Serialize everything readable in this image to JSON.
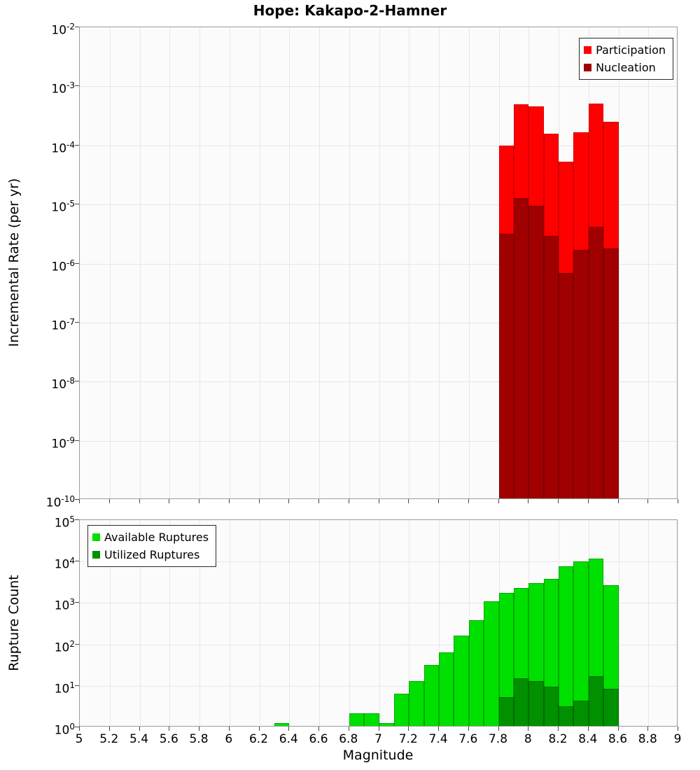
{
  "title": "Hope: Kakapo-2-Hamner",
  "xlabel": "Magnitude",
  "x_ticks": [
    "5",
    "5.2",
    "5.4",
    "5.6",
    "5.8",
    "6",
    "6.2",
    "6.4",
    "6.6",
    "6.8",
    "7",
    "7.2",
    "7.4",
    "7.6",
    "7.8",
    "8",
    "8.2",
    "8.4",
    "8.6",
    "8.8",
    "9"
  ],
  "top_plot": {
    "ylabel": "Incremental Rate (per yr)",
    "y_ticks_exp": [
      -2,
      -3,
      -4,
      -5,
      -6,
      -7,
      -8,
      -9,
      -10
    ]
  },
  "bottom_plot": {
    "ylabel": "Rupture Count",
    "y_ticks_exp": [
      5,
      4,
      3,
      2,
      1,
      0
    ]
  },
  "colors": {
    "participation": "#ff0000",
    "nucleation": "#a00000",
    "available_ruptures": "#00e000",
    "utilized_ruptures": "#009000",
    "gridline": "#e7e7e7",
    "plot_border": "#9b9b9b"
  },
  "chart_data": [
    {
      "type": "bar",
      "title": "Hope: Kakapo-2-Hamner",
      "xlabel": "Magnitude",
      "ylabel": "Incremental Rate (per yr)",
      "yscale": "log",
      "xlim": [
        5,
        9
      ],
      "ylim": [
        1e-10,
        0.01
      ],
      "bin_width": 0.1,
      "grid": true,
      "legend_position": "top-right",
      "series": [
        {
          "name": "Participation",
          "color": "#ff0000",
          "edge": "#d40000",
          "x": [
            7.85,
            7.95,
            8.05,
            8.15,
            8.25,
            8.35,
            8.45,
            8.55
          ],
          "values": [
            9.5e-05,
            0.00047,
            0.00043,
            0.00015,
            5e-05,
            0.00016,
            0.00048,
            0.00024
          ]
        },
        {
          "name": "Nucleation",
          "color": "#a00000",
          "edge": "#7f0000",
          "x": [
            7.85,
            7.95,
            8.05,
            8.15,
            8.25,
            8.35,
            8.45,
            8.55
          ],
          "values": [
            3e-06,
            1.2e-05,
            9e-06,
            2.8e-06,
            6.5e-07,
            1.6e-06,
            4e-06,
            1.7e-06
          ]
        }
      ]
    },
    {
      "type": "bar",
      "title": "",
      "xlabel": "Magnitude",
      "ylabel": "Rupture Count",
      "yscale": "log",
      "xlim": [
        5,
        9
      ],
      "ylim": [
        1,
        100000.0
      ],
      "bin_width": 0.1,
      "grid": true,
      "legend_position": "top-left",
      "series": [
        {
          "name": "Available Ruptures",
          "color": "#00e000",
          "edge": "#00a800",
          "x": [
            6.35,
            6.85,
            6.95,
            7.05,
            7.15,
            7.25,
            7.35,
            7.45,
            7.55,
            7.65,
            7.75,
            7.85,
            7.95,
            8.05,
            8.15,
            8.25,
            8.35,
            8.45,
            8.55
          ],
          "values": [
            1,
            2,
            2,
            1,
            6,
            12,
            30,
            60,
            150,
            350,
            1000,
            1600,
            2100,
            2800,
            3500,
            7000,
            9500,
            11000,
            2500
          ]
        },
        {
          "name": "Utilized Ruptures",
          "color": "#009000",
          "edge": "#006c00",
          "x": [
            7.85,
            7.95,
            8.05,
            8.15,
            8.25,
            8.35,
            8.45,
            8.55
          ],
          "values": [
            5,
            14,
            12,
            9,
            3,
            4,
            16,
            8
          ]
        }
      ]
    }
  ]
}
